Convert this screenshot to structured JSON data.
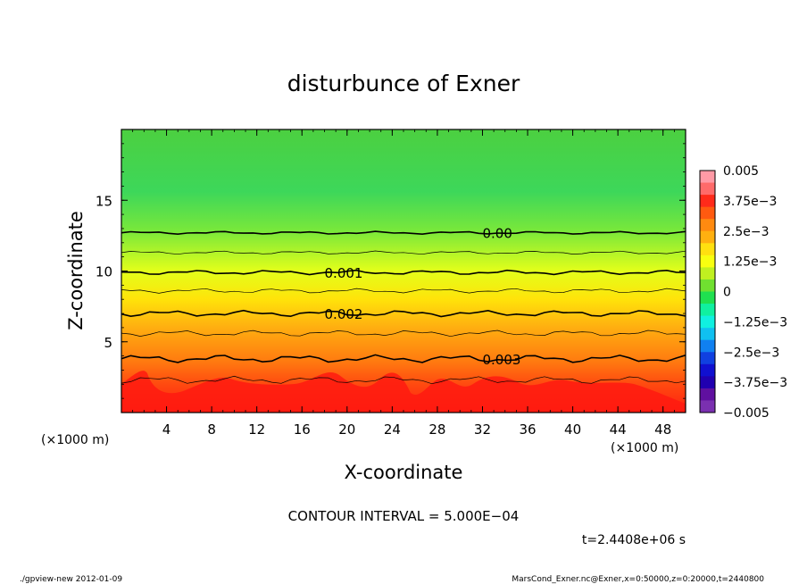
{
  "chart_data": {
    "type": "heatmap",
    "title": "disturbunce of Exner",
    "xlabel": "X-coordinate",
    "ylabel": "Z-coordinate",
    "x_unit_left": "(×1000 m)",
    "x_unit_right": "(×1000 m)",
    "xlim": [
      0,
      50
    ],
    "ylim": [
      0,
      20
    ],
    "x_ticks": [
      4,
      8,
      12,
      16,
      20,
      24,
      28,
      32,
      36,
      40,
      44,
      48
    ],
    "x_tick_labels": [
      "4",
      "8",
      "12",
      "16",
      "20",
      "24",
      "28",
      "32",
      "36",
      "40",
      "44",
      "48"
    ],
    "y_ticks": [
      5,
      10,
      15
    ],
    "y_tick_labels": [
      "5",
      "10",
      "15"
    ],
    "contour_lines": [
      {
        "level": 0.0,
        "label": "0.00",
        "z": 12.7,
        "label_x": 32
      },
      {
        "level": 0.001,
        "label": "0.001",
        "z": 9.9,
        "label_x": 18
      },
      {
        "level": 0.002,
        "label": "0.002",
        "z": 7.0,
        "label_x": 18
      },
      {
        "level": 0.003,
        "label": "0.003",
        "z": 3.8,
        "label_x": 32
      }
    ],
    "minor_contour_levels": [
      0.0005,
      0.0015,
      0.0025,
      0.0035
    ],
    "colorbar": {
      "min": -0.005,
      "max": 0.005,
      "tick_labels": [
        "0.005",
        "3.75e−3",
        "2.5e−3",
        "1.25e−3",
        "0",
        "−1.25e−3",
        "−2.5e−3",
        "−3.75e−3",
        "−0.005"
      ],
      "colors_top_to_bottom": [
        "#ff9aa6",
        "#ff6a6a",
        "#ff2a1a",
        "#ff5a10",
        "#ff8a10",
        "#ffb010",
        "#ffe010",
        "#f8ff10",
        "#c0f020",
        "#70e030",
        "#20e050",
        "#10f0a0",
        "#10f0e0",
        "#10c0f0",
        "#1080f0",
        "#1040e0",
        "#1010d0",
        "#2000b0",
        "#6010a0",
        "#7a30b0"
      ]
    }
  },
  "footer": {
    "contour_interval": "CONTOUR INTERVAL = 5.000E−04",
    "time": "t=2.4408e+06 s",
    "program": "./gpview-new   2012-01-09",
    "source": "MarsCond_Exner.nc@Exner,x=0:50000,z=0:20000,t=2440800"
  }
}
